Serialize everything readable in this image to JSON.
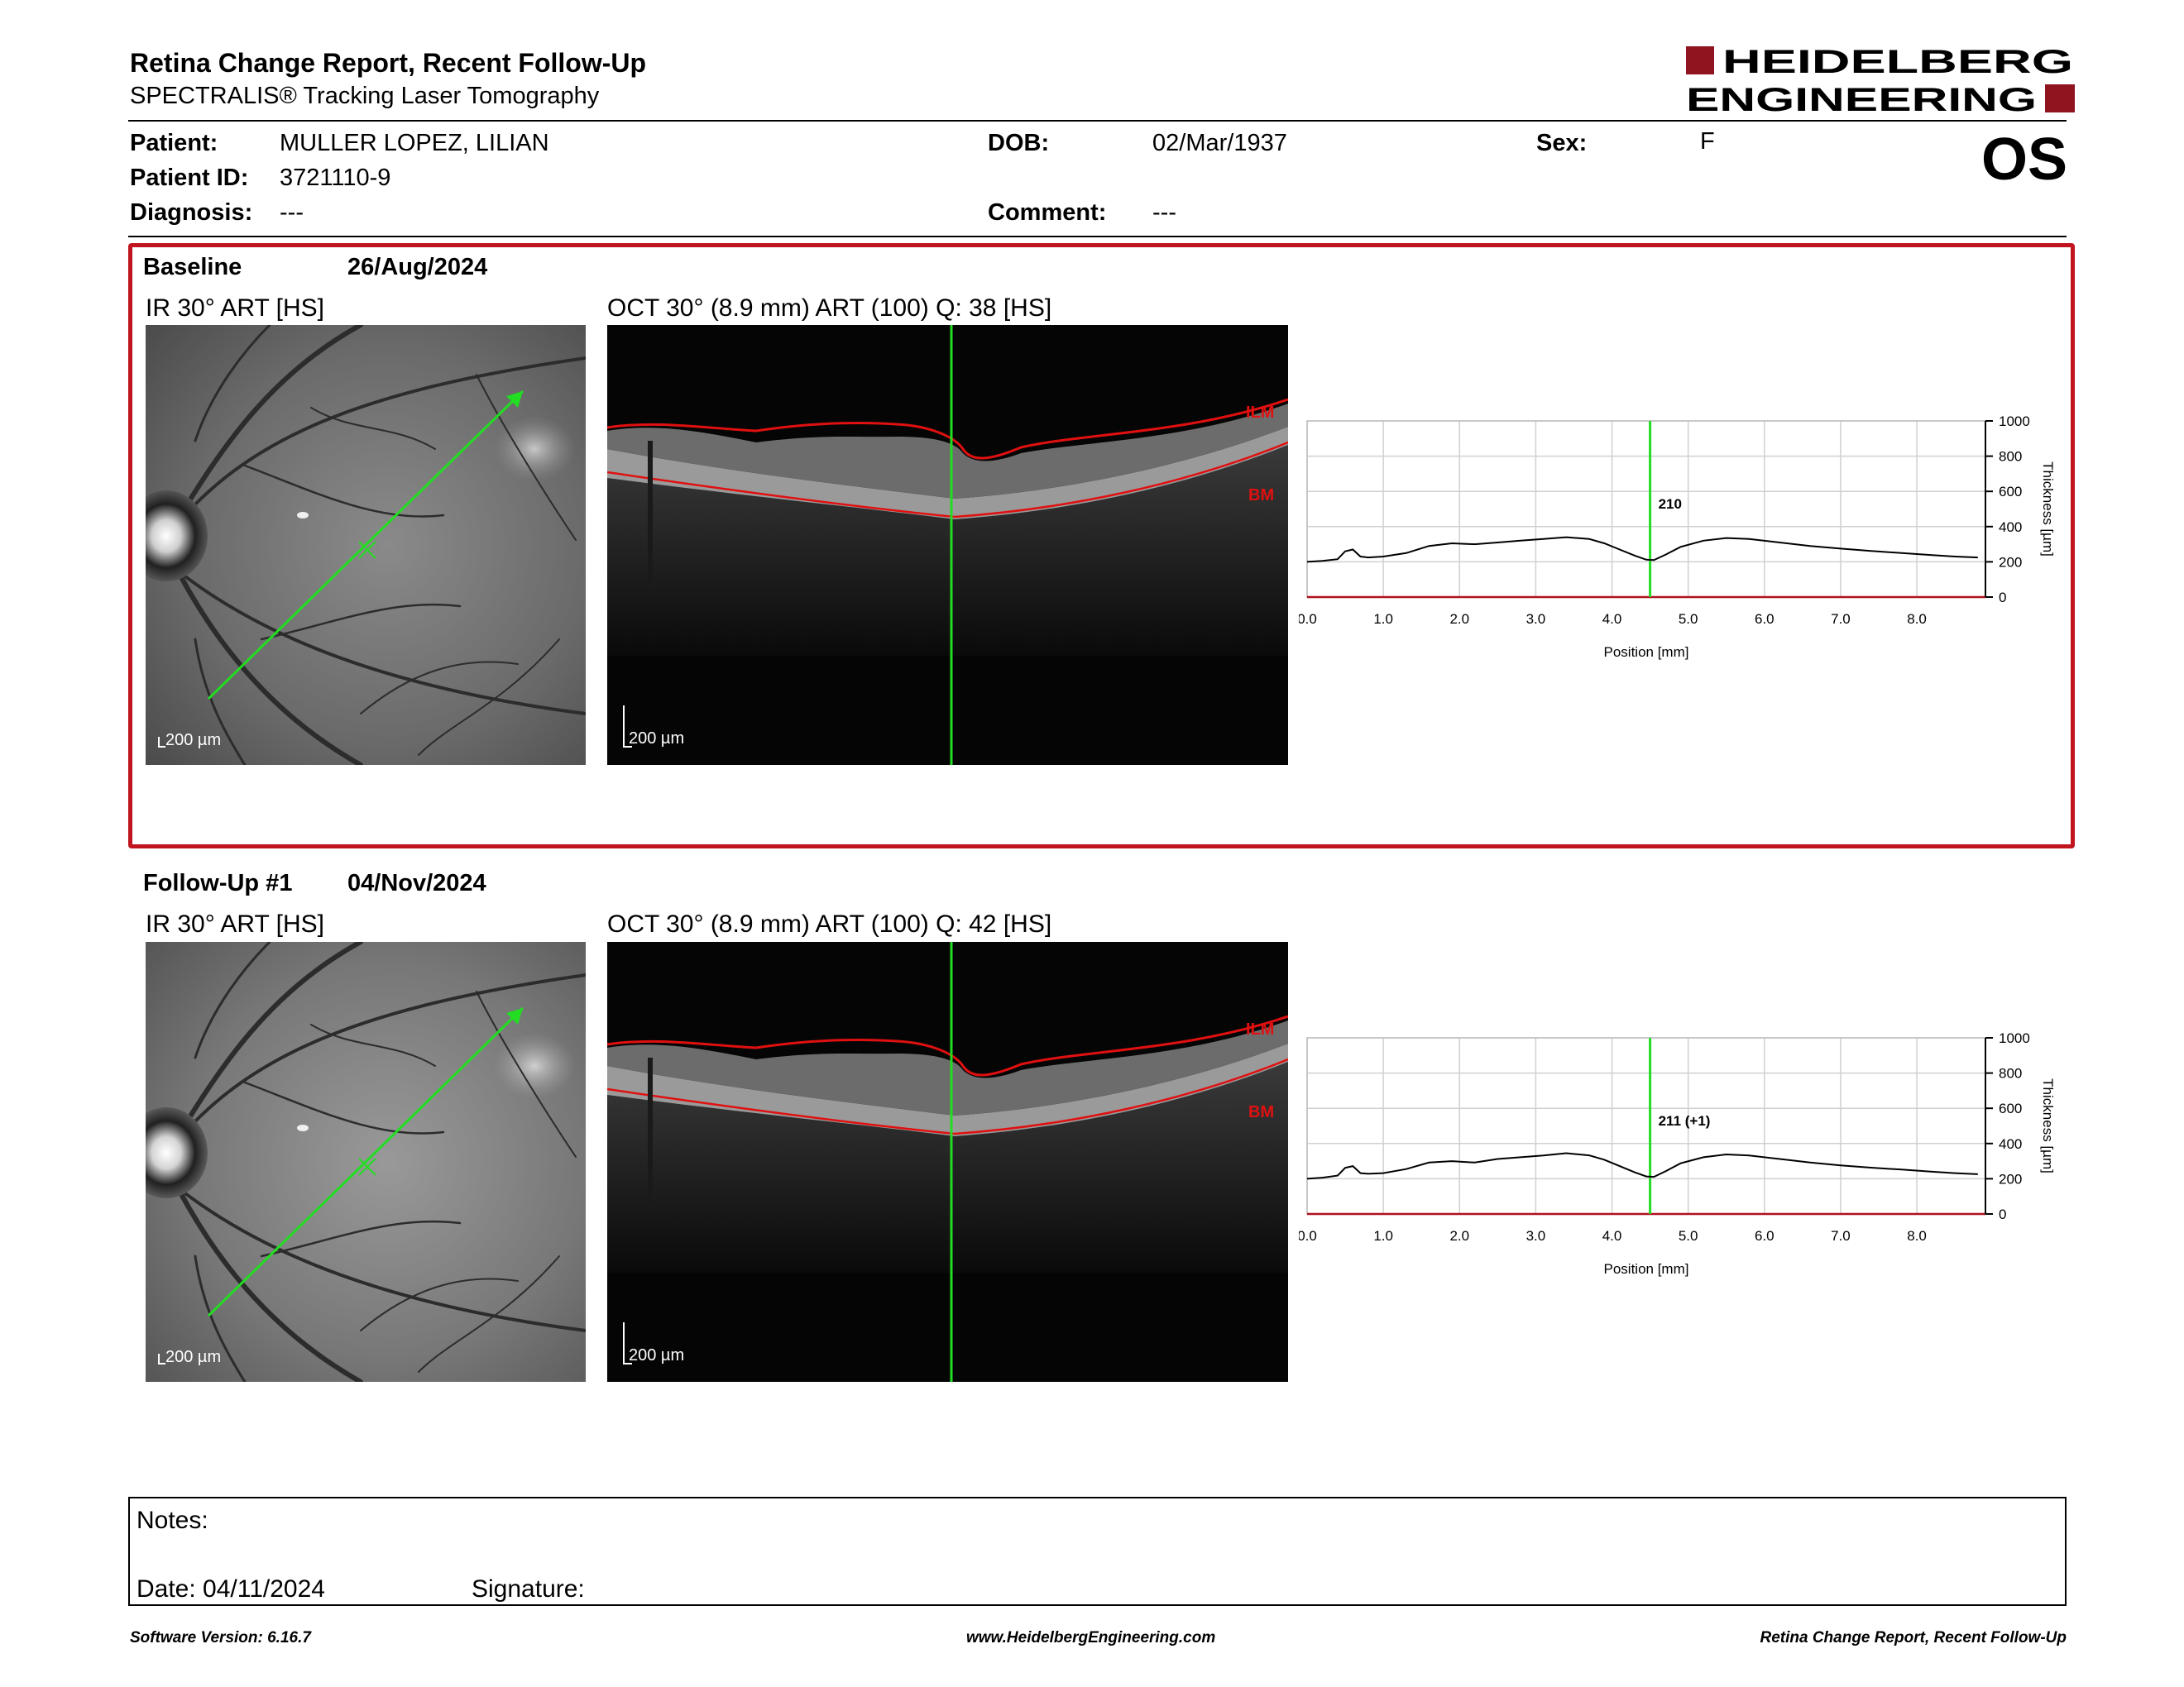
{
  "header": {
    "title": "Retina Change Report, Recent Follow-Up",
    "subtitle": "SPECTRALIS® Tracking Laser Tomography",
    "logo_line1": "HEIDELBERG",
    "logo_line2": "ENGINEERING"
  },
  "patient": {
    "patient_label": "Patient:",
    "patient_value": "MULLER LOPEZ, LILIAN",
    "id_label": "Patient ID:",
    "id_value": "3721110-9",
    "diagnosis_label": "Diagnosis:",
    "diagnosis_value": "---",
    "dob_label": "DOB:",
    "dob_value": "02/Mar/1937",
    "comment_label": "Comment:",
    "comment_value": "---",
    "sex_label": "Sex:",
    "sex_value": "F",
    "eye": "OS"
  },
  "colors": {
    "accent_red": "#c0141e",
    "scan_line_green": "#22dd22",
    "layer_red": "#e01010"
  },
  "sections": [
    {
      "label": "Baseline",
      "date": "26/Aug/2024",
      "ir_title": "IR 30° ART [HS]",
      "oct_title": "OCT 30° (8.9 mm) ART (100) Q: 38 [HS]",
      "scale_ir": "200 µm",
      "scale_oct": "200 µm",
      "ilm_label": "ILM",
      "bm_label": "BM",
      "thickness_annotation": "210"
    },
    {
      "label": "Follow-Up #1",
      "date": "04/Nov/2024",
      "ir_title": "IR 30° ART [HS]",
      "oct_title": "OCT 30° (8.9 mm) ART (100) Q: 42 [HS]",
      "scale_ir": "200 µm",
      "scale_oct": "200 µm",
      "ilm_label": "ILM",
      "bm_label": "BM",
      "thickness_annotation": "211 (+1)"
    }
  ],
  "chart_data": [
    {
      "type": "line",
      "xlabel": "Position [mm]",
      "ylabel": "Thickness [µm]",
      "xlim": [
        0,
        8.9
      ],
      "ylim": [
        0,
        1000
      ],
      "x_ticks": [
        "0.0",
        "1.0",
        "2.0",
        "3.0",
        "4.0",
        "5.0",
        "6.0",
        "7.0",
        "8.0"
      ],
      "y_ticks": [
        "0",
        "200",
        "400",
        "600",
        "800",
        "1000"
      ],
      "y_axis_side": "right",
      "grid": true,
      "marker_x": 4.5,
      "marker_label": "210",
      "series": [
        {
          "x": [
            0.0,
            0.2,
            0.4,
            0.5,
            0.6,
            0.7,
            0.8,
            1.0,
            1.3,
            1.6,
            1.9,
            2.2,
            2.5,
            2.8,
            3.1,
            3.4,
            3.7,
            3.9,
            4.1,
            4.3,
            4.45,
            4.55,
            4.7,
            4.9,
            5.2,
            5.5,
            5.8,
            6.2,
            6.6,
            7.0,
            7.4,
            7.8,
            8.2,
            8.5,
            8.8
          ],
          "y": [
            200,
            205,
            215,
            260,
            270,
            230,
            225,
            230,
            250,
            290,
            305,
            300,
            310,
            320,
            330,
            340,
            330,
            305,
            270,
            235,
            212,
            210,
            240,
            285,
            320,
            335,
            330,
            310,
            290,
            275,
            262,
            250,
            238,
            230,
            225
          ]
        }
      ]
    },
    {
      "type": "line",
      "xlabel": "Position [mm]",
      "ylabel": "Thickness [µm]",
      "xlim": [
        0,
        8.9
      ],
      "ylim": [
        0,
        1000
      ],
      "x_ticks": [
        "0.0",
        "1.0",
        "2.0",
        "3.0",
        "4.0",
        "5.0",
        "6.0",
        "7.0",
        "8.0"
      ],
      "y_ticks": [
        "0",
        "200",
        "400",
        "600",
        "800",
        "1000"
      ],
      "y_axis_side": "right",
      "grid": true,
      "marker_x": 4.5,
      "marker_label": "211 (+1)",
      "series": [
        {
          "x": [
            0.0,
            0.2,
            0.4,
            0.5,
            0.6,
            0.7,
            0.8,
            1.0,
            1.3,
            1.6,
            1.9,
            2.2,
            2.5,
            2.8,
            3.1,
            3.4,
            3.7,
            3.9,
            4.1,
            4.3,
            4.45,
            4.55,
            4.7,
            4.9,
            5.2,
            5.5,
            5.8,
            6.2,
            6.6,
            7.0,
            7.4,
            7.8,
            8.2,
            8.5,
            8.8
          ],
          "y": [
            200,
            206,
            218,
            262,
            272,
            232,
            228,
            232,
            255,
            292,
            300,
            292,
            312,
            322,
            332,
            345,
            333,
            308,
            272,
            236,
            213,
            211,
            242,
            288,
            322,
            338,
            332,
            312,
            292,
            276,
            263,
            252,
            240,
            232,
            226
          ]
        }
      ]
    }
  ],
  "notes": {
    "notes_label": "Notes:",
    "date_label": "Date: 04/11/2024",
    "signature_label": "Signature:"
  },
  "footer": {
    "software_version": "Software Version: 6.16.7",
    "website": "www.HeidelbergEngineering.com",
    "report_name": "Retina Change Report, Recent Follow-Up"
  }
}
